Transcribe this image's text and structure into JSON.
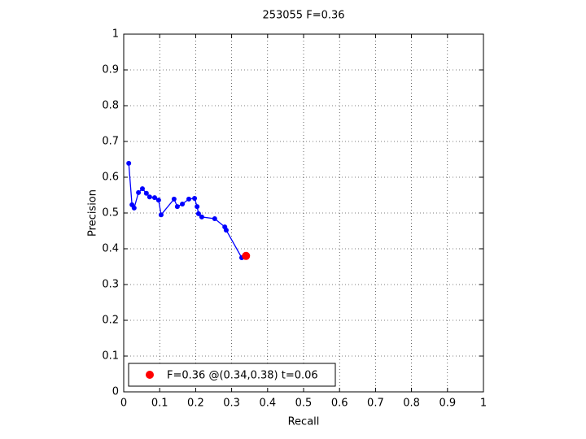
{
  "chart_data": {
    "type": "line",
    "title": "253055 F=0.36",
    "xlabel": "Recall",
    "ylabel": "Precision",
    "xlim": [
      0,
      1
    ],
    "ylim": [
      0,
      1
    ],
    "xticks": [
      0,
      0.1,
      0.2,
      0.3,
      0.4,
      0.5,
      0.6,
      0.7,
      0.8,
      0.9,
      1
    ],
    "yticks": [
      0,
      0.1,
      0.2,
      0.3,
      0.4,
      0.5,
      0.6,
      0.7,
      0.8,
      0.9,
      1
    ],
    "grid": true,
    "legend": "lower left",
    "series": [
      {
        "color": "#0000ff",
        "style": "line-markers",
        "x": [
          0.014,
          0.023,
          0.029,
          0.041,
          0.052,
          0.063,
          0.072,
          0.086,
          0.097,
          0.104,
          0.14,
          0.149,
          0.163,
          0.181,
          0.197,
          0.204,
          0.208,
          0.217,
          0.253,
          0.281,
          0.285,
          0.328
        ],
        "values": [
          0.639,
          0.523,
          0.514,
          0.557,
          0.568,
          0.555,
          0.545,
          0.543,
          0.536,
          0.495,
          0.539,
          0.518,
          0.525,
          0.539,
          0.541,
          0.518,
          0.498,
          0.489,
          0.484,
          0.461,
          0.452,
          0.375
        ]
      },
      {
        "name": "F=0.36 @(0.34,0.38) t=0.06",
        "color": "#ff0000",
        "style": "markers",
        "x": [
          0.34
        ],
        "values": [
          0.38
        ]
      }
    ]
  }
}
